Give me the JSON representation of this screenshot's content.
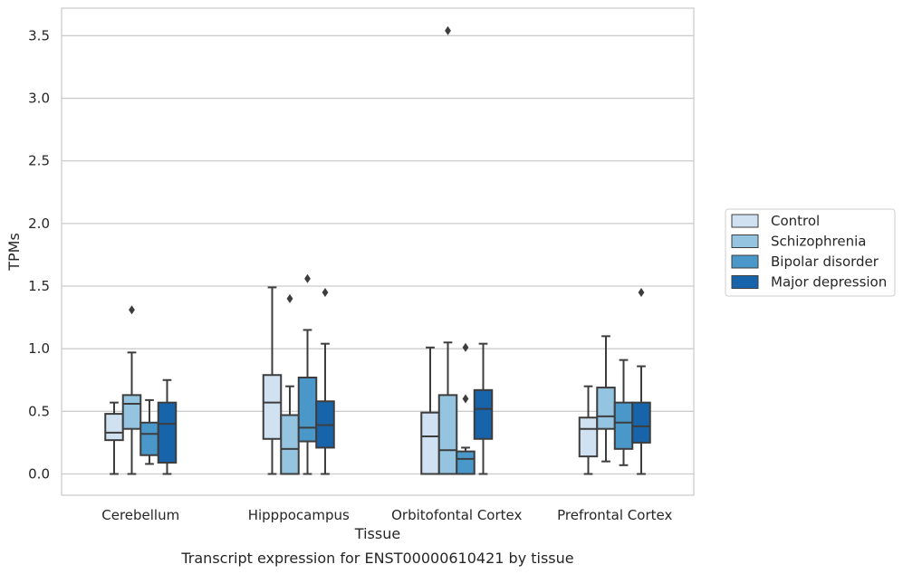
{
  "chart_data": {
    "type": "box",
    "xlabel": "Tissue",
    "ylabel": "TPMs",
    "caption": "Transcript expression for ENST00000610421 by tissue",
    "ylim": [
      -0.17,
      3.72
    ],
    "yticks": [
      "0.0",
      "0.5",
      "1.0",
      "1.5",
      "2.0",
      "2.5",
      "3.0",
      "3.5"
    ],
    "ytick_values": [
      0,
      0.5,
      1.0,
      1.5,
      2.0,
      2.5,
      3.0,
      3.5
    ],
    "grid": "horizontal",
    "legend_position": "right",
    "categories": [
      "Cerebellum",
      "Hipppocampus",
      "Orbitofontal Cortex",
      "Prefrontal Cortex"
    ],
    "series": [
      {
        "name": "Control",
        "color": "#d0e1f2",
        "boxes": [
          {
            "whislo": 0.0,
            "q1": 0.27,
            "med": 0.33,
            "q3": 0.48,
            "whishi": 0.57,
            "fliers": []
          },
          {
            "whislo": 0.0,
            "q1": 0.28,
            "med": 0.57,
            "q3": 0.79,
            "whishi": 1.49,
            "fliers": []
          },
          {
            "whislo": 0.0,
            "q1": 0.0,
            "med": 0.3,
            "q3": 0.49,
            "whishi": 1.01,
            "fliers": []
          },
          {
            "whislo": 0.0,
            "q1": 0.14,
            "med": 0.36,
            "q3": 0.45,
            "whishi": 0.7,
            "fliers": []
          }
        ]
      },
      {
        "name": "Schizophrenia",
        "color": "#94c4df",
        "boxes": [
          {
            "whislo": 0.0,
            "q1": 0.36,
            "med": 0.56,
            "q3": 0.63,
            "whishi": 0.97,
            "fliers": [
              1.31
            ]
          },
          {
            "whislo": 0.0,
            "q1": 0.0,
            "med": 0.2,
            "q3": 0.47,
            "whishi": 0.7,
            "fliers": [
              1.4
            ]
          },
          {
            "whislo": 0.0,
            "q1": 0.0,
            "med": 0.19,
            "q3": 0.63,
            "whishi": 1.05,
            "fliers": [
              3.54
            ]
          },
          {
            "whislo": 0.1,
            "q1": 0.36,
            "med": 0.46,
            "q3": 0.69,
            "whishi": 1.1,
            "fliers": []
          }
        ]
      },
      {
        "name": "Bipolar disorder",
        "color": "#4a98c9",
        "boxes": [
          {
            "whislo": 0.08,
            "q1": 0.15,
            "med": 0.32,
            "q3": 0.41,
            "whishi": 0.59,
            "fliers": []
          },
          {
            "whislo": 0.0,
            "q1": 0.26,
            "med": 0.37,
            "q3": 0.77,
            "whishi": 1.15,
            "fliers": [
              1.56
            ]
          },
          {
            "whislo": 0.0,
            "q1": 0.0,
            "med": 0.12,
            "q3": 0.18,
            "whishi": 0.21,
            "fliers": [
              0.6,
              1.01
            ]
          },
          {
            "whislo": 0.07,
            "q1": 0.2,
            "med": 0.41,
            "q3": 0.57,
            "whishi": 0.91,
            "fliers": []
          }
        ]
      },
      {
        "name": "Major depression",
        "color": "#1764ab",
        "boxes": [
          {
            "whislo": 0.0,
            "q1": 0.09,
            "med": 0.4,
            "q3": 0.57,
            "whishi": 0.75,
            "fliers": []
          },
          {
            "whislo": 0.0,
            "q1": 0.21,
            "med": 0.39,
            "q3": 0.58,
            "whishi": 1.04,
            "fliers": [
              1.45
            ]
          },
          {
            "whislo": 0.0,
            "q1": 0.28,
            "med": 0.52,
            "q3": 0.67,
            "whishi": 1.04,
            "fliers": []
          },
          {
            "whislo": 0.0,
            "q1": 0.25,
            "med": 0.38,
            "q3": 0.57,
            "whishi": 0.86,
            "fliers": [
              1.45
            ]
          }
        ]
      }
    ]
  }
}
